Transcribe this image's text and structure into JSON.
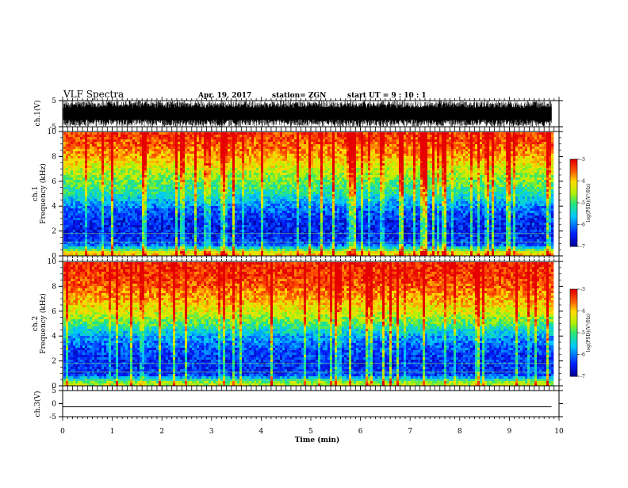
{
  "header": {
    "title": "VLF Spectra",
    "date": "Apr. 19, 2017",
    "station": "station= ZGN",
    "start": "start  UT  =   9  : 10 : 1"
  },
  "chart_data": [
    {
      "type": "line",
      "panel": "ch1-waveform",
      "ylabel": "ch.1(V)",
      "ylim": [
        -5,
        5
      ],
      "yticks": [
        "5",
        "-5"
      ],
      "xlim": [
        0,
        10
      ],
      "waveform": "dense-noise",
      "amplitude_v": 5
    },
    {
      "type": "heatmap",
      "panel": "ch1-spectrogram",
      "ylabel": "ch.1 Frequency (kHz)",
      "xlim": [
        0,
        10
      ],
      "ylim": [
        0,
        10
      ],
      "yticks": [
        "0",
        "2",
        "4",
        "6",
        "8",
        "10"
      ],
      "data_x_end_min": 9.85,
      "colorbar": {
        "label": "log(PSD)(V²/Hz)",
        "range": [
          -7,
          -3
        ],
        "ticks": [
          "-3",
          "-4",
          "-5",
          "-6",
          "-7"
        ]
      },
      "band_profile_log_psd": [
        {
          "freq_khz": 0.3,
          "value": -4.0
        },
        {
          "freq_khz": 1.0,
          "value": -6.2
        },
        {
          "freq_khz": 2.0,
          "value": -6.5
        },
        {
          "freq_khz": 3.0,
          "value": -6.4
        },
        {
          "freq_khz": 4.0,
          "value": -6.0
        },
        {
          "freq_khz": 5.0,
          "value": -5.3
        },
        {
          "freq_khz": 6.0,
          "value": -4.8
        },
        {
          "freq_khz": 7.0,
          "value": -4.4
        },
        {
          "freq_khz": 8.0,
          "value": -3.9
        },
        {
          "freq_khz": 9.0,
          "value": -3.5
        },
        {
          "freq_khz": 10.0,
          "value": -3.3
        }
      ]
    },
    {
      "type": "heatmap",
      "panel": "ch2-spectrogram",
      "ylabel": "ch.2 Frequency (kHz)",
      "xlim": [
        0,
        10
      ],
      "ylim": [
        0,
        10
      ],
      "yticks": [
        "0",
        "2",
        "4",
        "6",
        "8",
        "10"
      ],
      "data_x_end_min": 9.85,
      "colorbar": {
        "label": "log(PSD)(V²/Hz)",
        "range": [
          -7,
          -3
        ],
        "ticks": [
          "-3",
          "-4",
          "-5",
          "-6",
          "-7"
        ]
      },
      "band_profile_log_psd": [
        {
          "freq_khz": 0.3,
          "value": -4.5
        },
        {
          "freq_khz": 1.0,
          "value": -6.3
        },
        {
          "freq_khz": 2.0,
          "value": -6.4
        },
        {
          "freq_khz": 3.0,
          "value": -6.2
        },
        {
          "freq_khz": 4.0,
          "value": -5.8
        },
        {
          "freq_khz": 5.0,
          "value": -5.0
        },
        {
          "freq_khz": 6.0,
          "value": -4.3
        },
        {
          "freq_khz": 7.0,
          "value": -3.9
        },
        {
          "freq_khz": 8.0,
          "value": -3.5
        },
        {
          "freq_khz": 9.0,
          "value": -3.3
        },
        {
          "freq_khz": 10.0,
          "value": -3.2
        }
      ]
    },
    {
      "type": "line",
      "panel": "ch3-waveform",
      "ylabel": "ch.3(V)",
      "ylim": [
        -5,
        5
      ],
      "yticks": [
        "5",
        "0",
        "-5"
      ],
      "xlim": [
        0,
        10
      ],
      "waveform": "flat",
      "level_v": -1.2
    }
  ],
  "x_axis": {
    "label": "Time (min)",
    "ticks": [
      "0",
      "1",
      "2",
      "3",
      "4",
      "5",
      "6",
      "7",
      "8",
      "9",
      "10"
    ]
  }
}
